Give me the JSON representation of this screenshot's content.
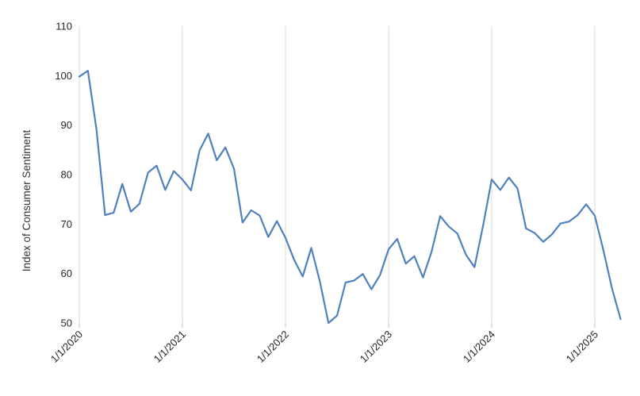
{
  "chart_data": {
    "type": "line",
    "title": "",
    "xlabel": "",
    "ylabel": "Index of Consumer Sentiment",
    "x": [
      "1/2020",
      "2/2020",
      "3/2020",
      "4/2020",
      "5/2020",
      "6/2020",
      "7/2020",
      "8/2020",
      "9/2020",
      "10/2020",
      "11/2020",
      "12/2020",
      "1/2021",
      "2/2021",
      "3/2021",
      "4/2021",
      "5/2021",
      "6/2021",
      "7/2021",
      "8/2021",
      "9/2021",
      "10/2021",
      "11/2021",
      "12/2021",
      "1/2022",
      "2/2022",
      "3/2022",
      "4/2022",
      "5/2022",
      "6/2022",
      "7/2022",
      "8/2022",
      "9/2022",
      "10/2022",
      "11/2022",
      "12/2022",
      "1/2023",
      "2/2023",
      "3/2023",
      "4/2023",
      "5/2023",
      "6/2023",
      "7/2023",
      "8/2023",
      "9/2023",
      "10/2023",
      "11/2023",
      "12/2023",
      "1/2024",
      "2/2024",
      "3/2024",
      "4/2024",
      "5/2024",
      "6/2024",
      "7/2024",
      "8/2024",
      "9/2024",
      "10/2024",
      "11/2024",
      "12/2024",
      "1/2025",
      "2/2025",
      "3/2025",
      "4/2025"
    ],
    "values": [
      99.8,
      101.0,
      89.1,
      71.8,
      72.3,
      78.1,
      72.5,
      74.1,
      80.4,
      81.8,
      76.9,
      80.7,
      79.0,
      76.8,
      84.9,
      88.3,
      82.9,
      85.5,
      81.2,
      70.3,
      72.8,
      71.7,
      67.4,
      70.6,
      67.2,
      62.8,
      59.4,
      65.2,
      58.4,
      50.0,
      51.5,
      58.2,
      58.6,
      59.9,
      56.8,
      59.7,
      64.9,
      67.0,
      62.0,
      63.5,
      59.2,
      64.4,
      71.6,
      69.5,
      68.1,
      63.8,
      61.3,
      69.7,
      79.0,
      76.9,
      79.4,
      77.2,
      69.1,
      68.2,
      66.4,
      67.9,
      70.1,
      70.5,
      71.8,
      74.0,
      71.7,
      64.7,
      57.0,
      50.8
    ],
    "x_tick_labels": [
      "1/1/2020",
      "1/1/2021",
      "1/1/2022",
      "1/1/2023",
      "1/1/2024",
      "1/1/2025"
    ],
    "x_tick_month_indexes": [
      0,
      12,
      24,
      36,
      48,
      60
    ],
    "y_ticks": [
      50,
      60,
      70,
      80,
      90,
      100,
      110
    ],
    "ylim": [
      50,
      110
    ],
    "grid": "vertical-only",
    "legend": "none",
    "colors": {
      "line": "#4f81bd",
      "gridline": "#d9d9d9",
      "axis_tick": "#c0c0c0",
      "tick_text": "#262626",
      "axis_title_text": "#333333",
      "background": "#ffffff"
    }
  }
}
